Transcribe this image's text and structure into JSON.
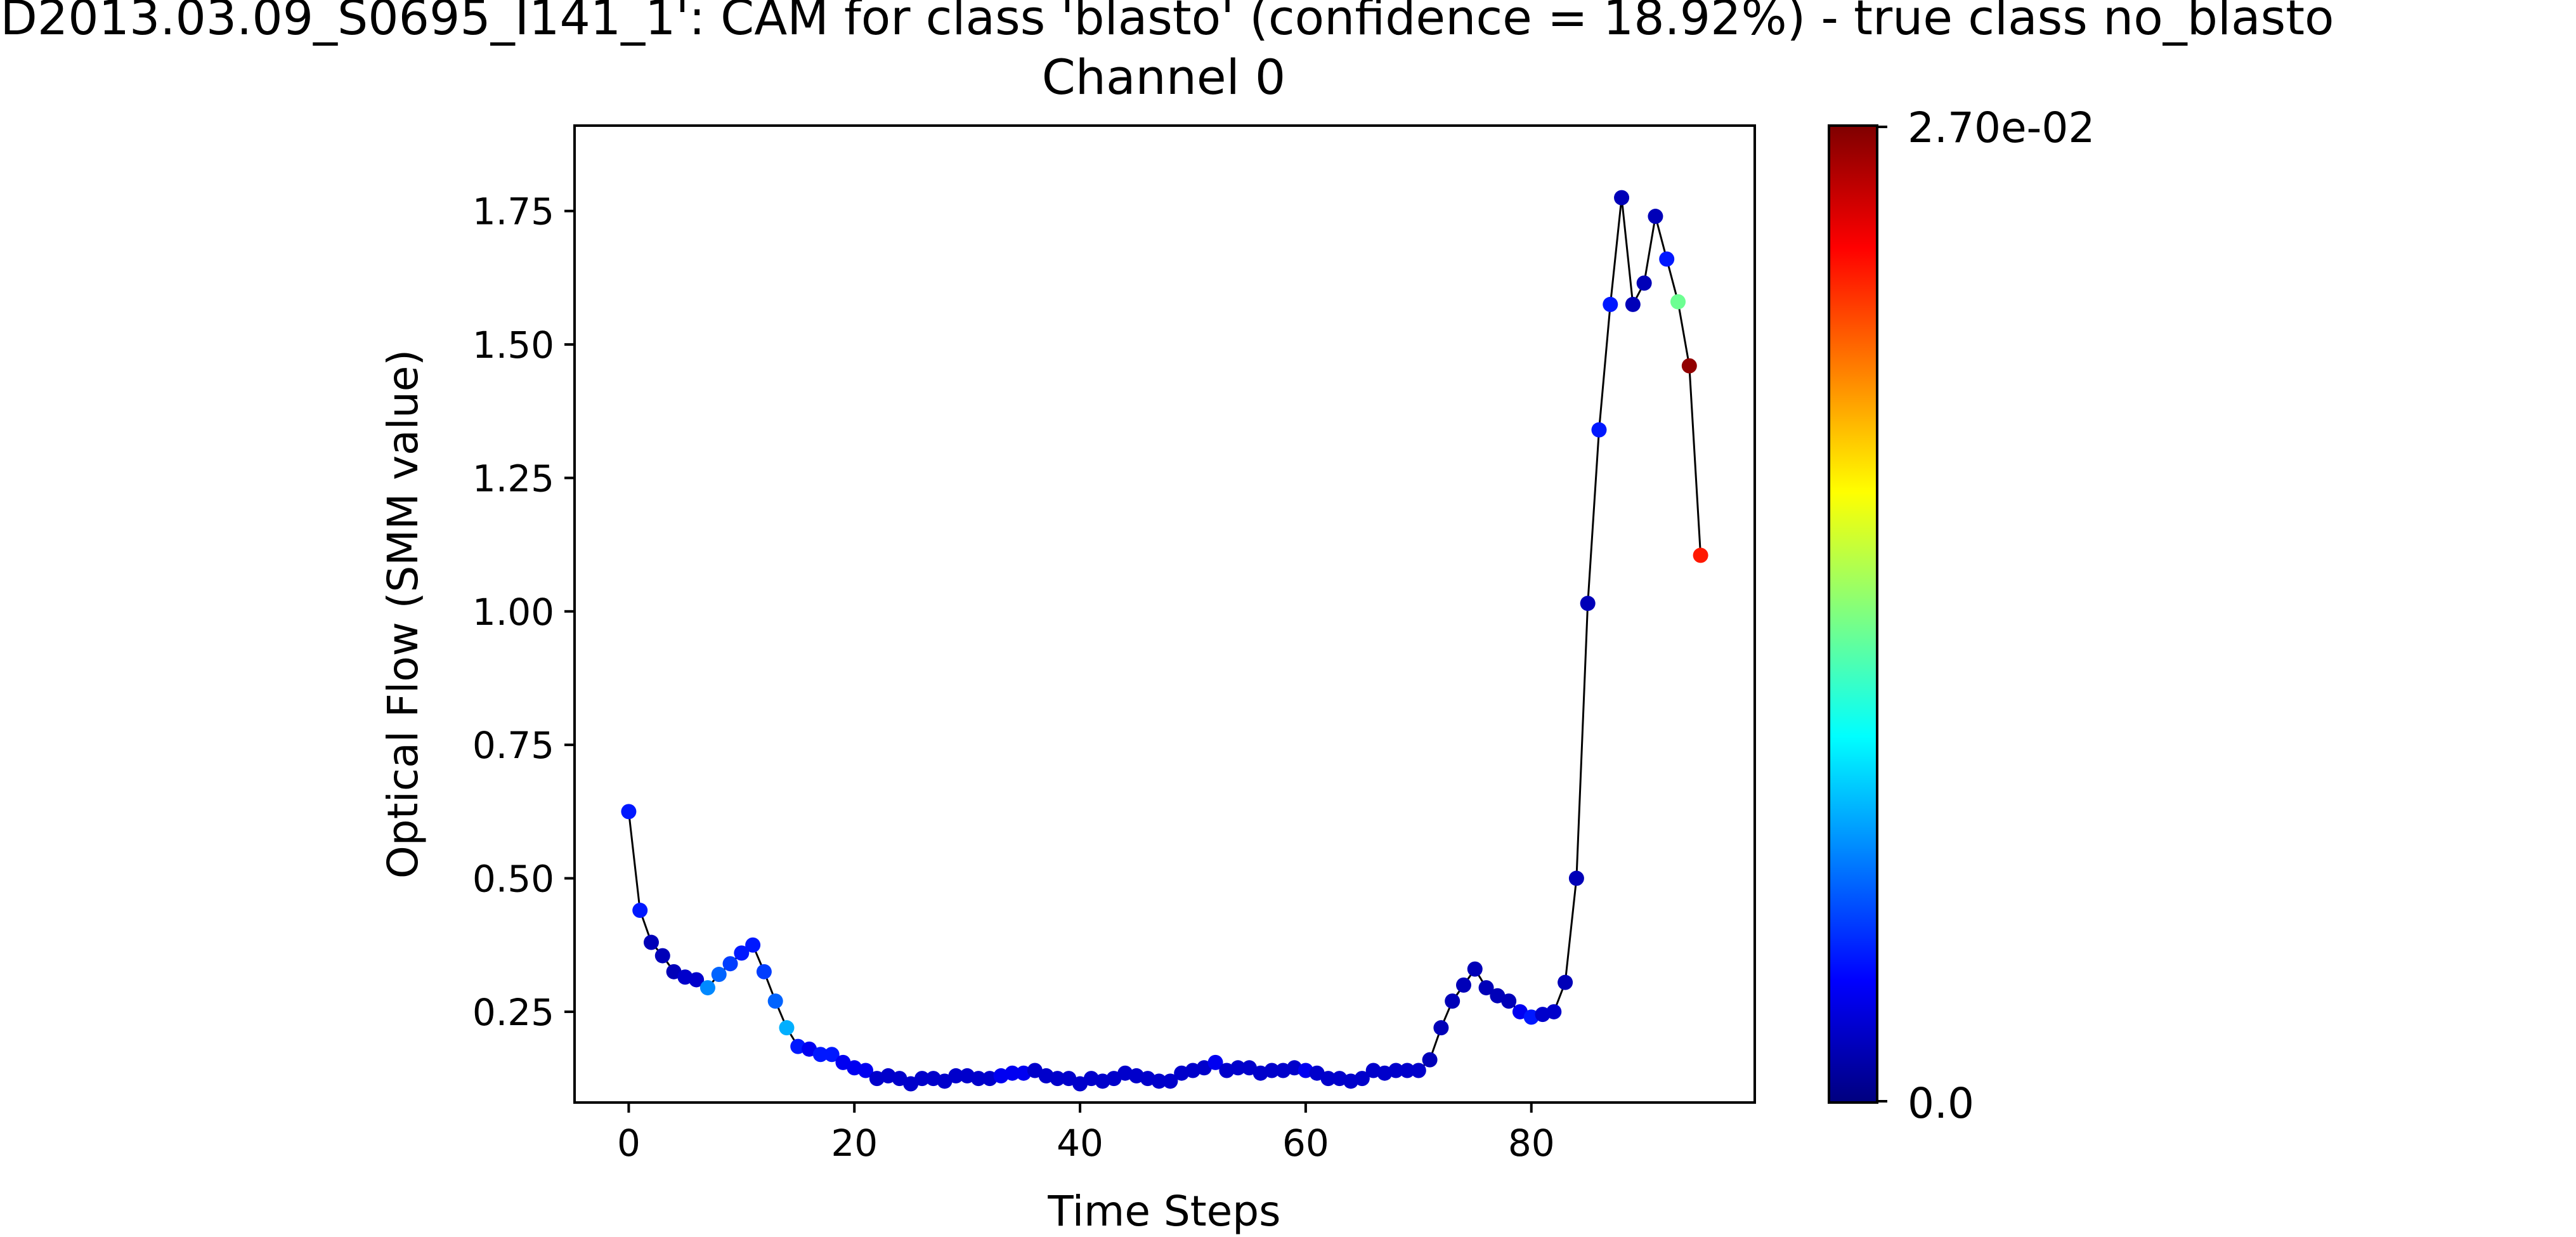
{
  "chart_data": {
    "type": "scatter",
    "title": "'D2013.03.09_S0695_I141_1': CAM for class 'blasto' (confidence = 18.92%) - true class no_blasto",
    "subtitle": "Channel 0",
    "xlabel": "Time Steps",
    "ylabel": "Optical Flow (SMM value)",
    "xlim": [
      -4.8,
      99.8
    ],
    "ylim": [
      0.08,
      1.91
    ],
    "x_ticks": [
      0,
      20,
      40,
      60,
      80
    ],
    "x_tick_labels": [
      "0",
      "20",
      "40",
      "60",
      "80"
    ],
    "y_ticks": [
      0.25,
      0.5,
      0.75,
      1.0,
      1.25,
      1.5,
      1.75
    ],
    "y_tick_labels": [
      "0.25",
      "0.50",
      "0.75",
      "1.00",
      "1.25",
      "1.50",
      "1.75"
    ],
    "grid": false,
    "line_color": "#000000",
    "colormap": "jet",
    "colorbar": {
      "min": 0.0,
      "max": 0.027,
      "min_label": "0.0",
      "max_label": "2.70e-02"
    },
    "x": [
      0,
      1,
      2,
      3,
      4,
      5,
      6,
      7,
      8,
      9,
      10,
      11,
      12,
      13,
      14,
      15,
      16,
      17,
      18,
      19,
      20,
      21,
      22,
      23,
      24,
      25,
      26,
      27,
      28,
      29,
      30,
      31,
      32,
      33,
      34,
      35,
      36,
      37,
      38,
      39,
      40,
      41,
      42,
      43,
      44,
      45,
      46,
      47,
      48,
      49,
      50,
      51,
      52,
      53,
      54,
      55,
      56,
      57,
      58,
      59,
      60,
      61,
      62,
      63,
      64,
      65,
      66,
      67,
      68,
      69,
      70,
      71,
      72,
      73,
      74,
      75,
      76,
      77,
      78,
      79,
      80,
      81,
      82,
      83,
      84,
      85,
      86,
      87,
      88,
      89,
      90,
      91,
      92,
      93,
      94,
      95
    ],
    "y": [
      0.625,
      0.44,
      0.38,
      0.355,
      0.325,
      0.315,
      0.31,
      0.295,
      0.32,
      0.34,
      0.36,
      0.375,
      0.325,
      0.27,
      0.22,
      0.185,
      0.18,
      0.17,
      0.17,
      0.155,
      0.145,
      0.14,
      0.125,
      0.13,
      0.125,
      0.115,
      0.125,
      0.125,
      0.12,
      0.13,
      0.13,
      0.125,
      0.125,
      0.13,
      0.135,
      0.135,
      0.14,
      0.13,
      0.125,
      0.125,
      0.115,
      0.125,
      0.12,
      0.125,
      0.135,
      0.13,
      0.125,
      0.12,
      0.12,
      0.135,
      0.14,
      0.145,
      0.155,
      0.14,
      0.145,
      0.145,
      0.135,
      0.14,
      0.14,
      0.145,
      0.14,
      0.135,
      0.125,
      0.125,
      0.12,
      0.125,
      0.14,
      0.135,
      0.14,
      0.14,
      0.14,
      0.16,
      0.22,
      0.27,
      0.3,
      0.33,
      0.295,
      0.28,
      0.27,
      0.25,
      0.24,
      0.245,
      0.25,
      0.305,
      0.5,
      1.015,
      1.34,
      1.575,
      1.775,
      1.575,
      1.615,
      1.74,
      1.66,
      1.58,
      1.46,
      1.105
    ],
    "cam": [
      0.004,
      0.004,
      0.0015,
      0.0015,
      0.0015,
      0.002,
      0.002,
      0.007,
      0.006,
      0.005,
      0.004,
      0.004,
      0.005,
      0.006,
      0.008,
      0.004,
      0.003,
      0.004,
      0.004,
      0.003,
      0.003,
      0.003,
      0.002,
      0.002,
      0.002,
      0.002,
      0.002,
      0.002,
      0.002,
      0.002,
      0.002,
      0.002,
      0.002,
      0.003,
      0.003,
      0.003,
      0.002,
      0.002,
      0.002,
      0.002,
      0.002,
      0.002,
      0.002,
      0.002,
      0.002,
      0.002,
      0.002,
      0.002,
      0.002,
      0.002,
      0.002,
      0.002,
      0.003,
      0.002,
      0.002,
      0.002,
      0.002,
      0.002,
      0.002,
      0.002,
      0.003,
      0.002,
      0.002,
      0.002,
      0.002,
      0.002,
      0.002,
      0.002,
      0.002,
      0.002,
      0.002,
      0.0015,
      0.0015,
      0.0015,
      0.0015,
      0.0015,
      0.0015,
      0.0015,
      0.0015,
      0.003,
      0.004,
      0.002,
      0.002,
      0.0015,
      0.0015,
      0.0015,
      0.004,
      0.004,
      0.0015,
      0.0015,
      0.0015,
      0.0015,
      0.004,
      0.013,
      0.0265,
      0.023
    ]
  }
}
